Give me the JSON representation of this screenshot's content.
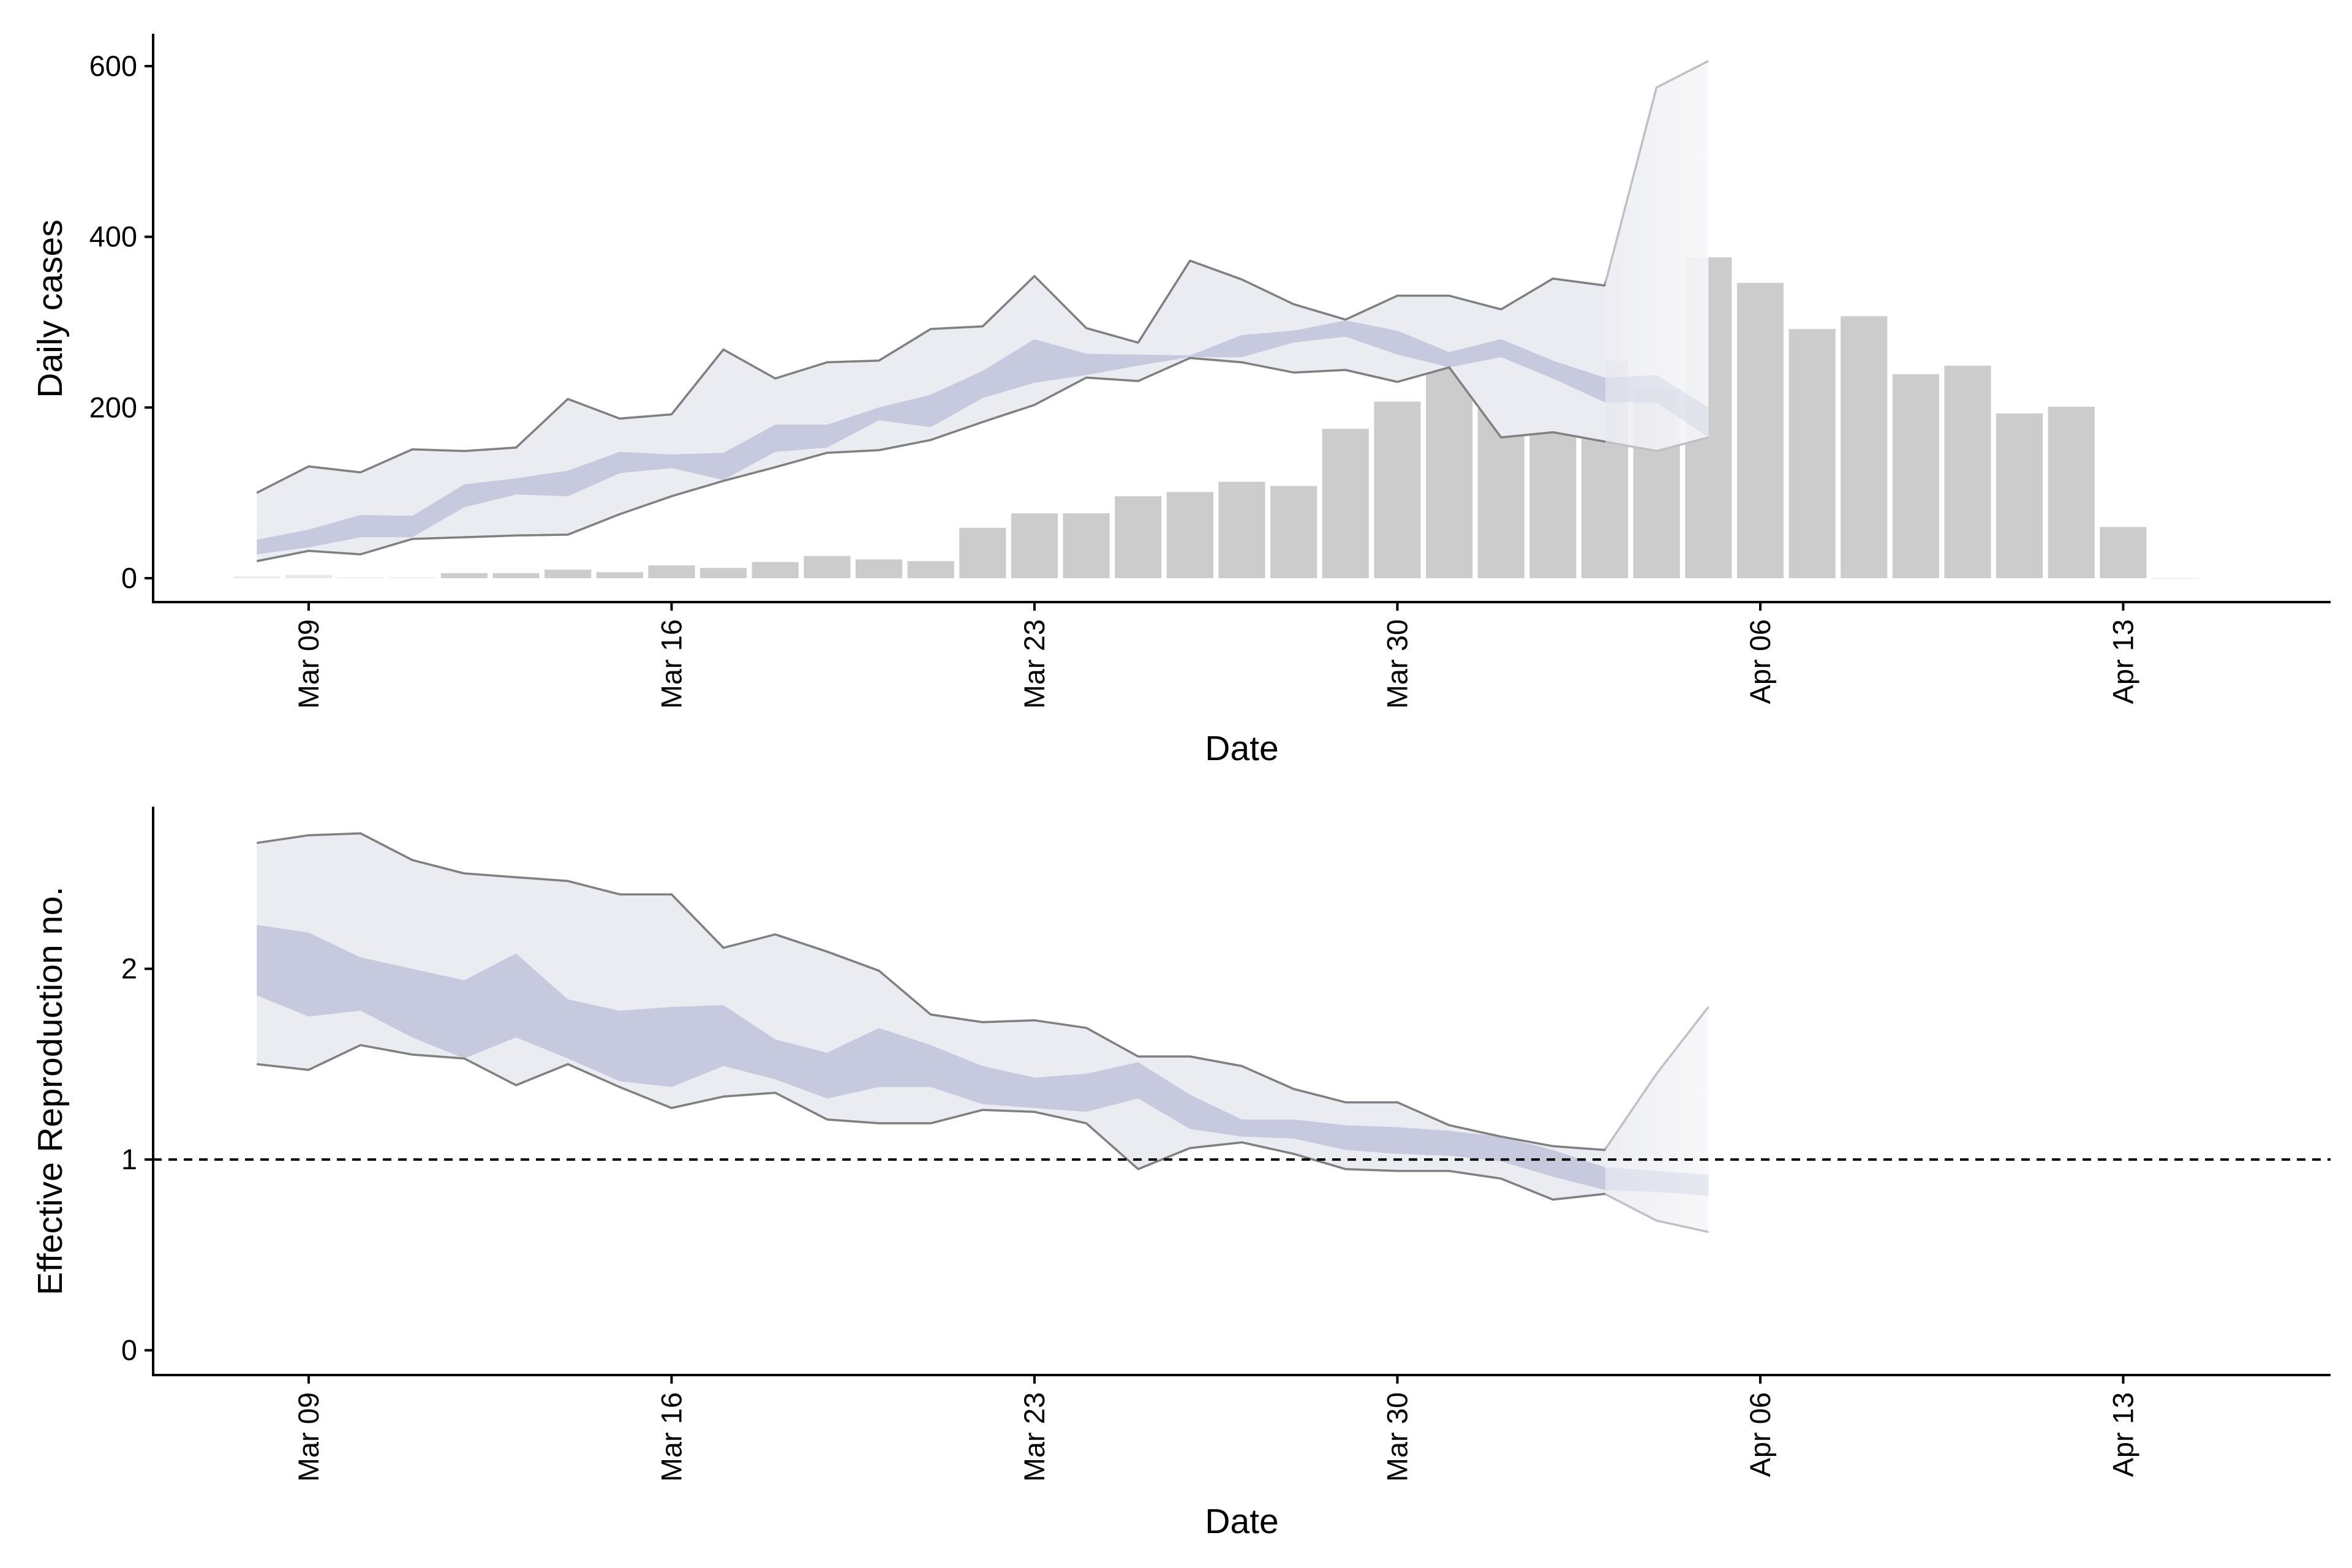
{
  "chart_data": [
    {
      "type": "bar",
      "xlabel": "Date",
      "ylabel": "Daily cases",
      "ylim": [
        -28,
        638
      ],
      "yticks": [
        0,
        200,
        400,
        600
      ],
      "xticks": [
        "Mar 09",
        "Mar 16",
        "Mar 23",
        "Mar 30",
        "Apr 06",
        "Apr 13"
      ],
      "x_start": "Mar 06",
      "x_end": "Apr 17",
      "date_unit": "day",
      "grid": false,
      "legend": "none",
      "bars": {
        "x": [
          "Mar 08",
          "Mar 09",
          "Mar 10",
          "Mar 11",
          "Mar 12",
          "Mar 13",
          "Mar 14",
          "Mar 15",
          "Mar 16",
          "Mar 17",
          "Mar 18",
          "Mar 19",
          "Mar 20",
          "Mar 21",
          "Mar 22",
          "Mar 23",
          "Mar 24",
          "Mar 25",
          "Mar 26",
          "Mar 27",
          "Mar 28",
          "Mar 29",
          "Mar 30",
          "Mar 31",
          "Apr 01",
          "Apr 02",
          "Apr 03",
          "Apr 04",
          "Apr 05",
          "Apr 06",
          "Apr 07",
          "Apr 08",
          "Apr 09",
          "Apr 10",
          "Apr 11",
          "Apr 12",
          "Apr 13",
          "Apr 14"
        ],
        "values": [
          2,
          4,
          1,
          1,
          6,
          6,
          10,
          7,
          15,
          12,
          19,
          26,
          22,
          20,
          59,
          76,
          76,
          96,
          101,
          113,
          108,
          175,
          207,
          306,
          220,
          259,
          255,
          222,
          376,
          346,
          292,
          307,
          239,
          249,
          193,
          201,
          60,
          0
        ],
        "faded_count": 4,
        "color": "#cccccc"
      },
      "estimate_dates": [
        "Mar 08",
        "Mar 09",
        "Mar 10",
        "Mar 11",
        "Mar 12",
        "Mar 13",
        "Mar 14",
        "Mar 15",
        "Mar 16",
        "Mar 17",
        "Mar 18",
        "Mar 19",
        "Mar 20",
        "Mar 21",
        "Mar 22",
        "Mar 23",
        "Mar 24",
        "Mar 25",
        "Mar 26",
        "Mar 27",
        "Mar 28",
        "Mar 29",
        "Mar 30",
        "Mar 31",
        "Apr 01",
        "Apr 02",
        "Apr 03",
        "Apr 04",
        "Apr 05"
      ],
      "band_outer_upper": [
        100,
        131,
        124,
        151,
        149,
        153,
        210,
        187,
        192,
        268,
        234,
        253,
        255,
        292,
        295,
        354,
        293,
        276,
        372,
        350,
        321,
        303,
        331,
        331,
        315,
        351,
        343,
        575,
        606
      ],
      "band_outer_lower": [
        20,
        32,
        28,
        46,
        48,
        50,
        51,
        75,
        96,
        114,
        130,
        147,
        150,
        162,
        183,
        203,
        235,
        231,
        258,
        253,
        241,
        244,
        230,
        247,
        165,
        171,
        160,
        149,
        165
      ],
      "band_inner_upper": [
        45,
        57,
        74,
        73,
        110,
        117,
        126,
        148,
        145,
        147,
        180,
        180,
        200,
        215,
        243,
        280,
        263,
        262,
        261,
        285,
        290,
        302,
        290,
        265,
        280,
        255,
        235,
        238,
        200
      ],
      "band_inner_lower": [
        28,
        36,
        48,
        48,
        83,
        98,
        96,
        123,
        129,
        115,
        148,
        153,
        185,
        177,
        211,
        229,
        238,
        249,
        259,
        259,
        276,
        283,
        262,
        247,
        259,
        234,
        206,
        206,
        165
      ],
      "fade_from": "Apr 03",
      "colors": {
        "outer": "#ebecf2",
        "inner": "#c7cadf",
        "line": "#808080",
        "faded_line": "#c0c0c4"
      }
    },
    {
      "type": "area",
      "xlabel": "Date",
      "ylabel": "Effective Reproduction no.",
      "ylim": [
        -0.13,
        2.85
      ],
      "yticks": [
        0,
        1,
        2
      ],
      "xticks": [
        "Mar 09",
        "Mar 16",
        "Mar 23",
        "Mar 30",
        "Apr 06",
        "Apr 13"
      ],
      "x_start": "Mar 06",
      "x_end": "Apr 17",
      "date_unit": "day",
      "grid": false,
      "legend": "none",
      "reference_line": 1,
      "estimate_dates": [
        "Mar 08",
        "Mar 09",
        "Mar 10",
        "Mar 11",
        "Mar 12",
        "Mar 13",
        "Mar 14",
        "Mar 15",
        "Mar 16",
        "Mar 17",
        "Mar 18",
        "Mar 19",
        "Mar 20",
        "Mar 21",
        "Mar 22",
        "Mar 23",
        "Mar 24",
        "Mar 25",
        "Mar 26",
        "Mar 27",
        "Mar 28",
        "Mar 29",
        "Mar 30",
        "Mar 31",
        "Apr 01",
        "Apr 02",
        "Apr 03",
        "Apr 04",
        "Apr 05"
      ],
      "band_outer_upper": [
        2.66,
        2.7,
        2.71,
        2.57,
        2.5,
        2.48,
        2.46,
        2.39,
        2.39,
        2.11,
        2.18,
        2.09,
        1.99,
        1.76,
        1.72,
        1.73,
        1.69,
        1.54,
        1.54,
        1.49,
        1.37,
        1.3,
        1.3,
        1.18,
        1.12,
        1.07,
        1.05,
        1.45,
        1.8
      ],
      "band_outer_lower": [
        1.5,
        1.47,
        1.6,
        1.55,
        1.53,
        1.39,
        1.5,
        1.38,
        1.27,
        1.33,
        1.35,
        1.21,
        1.19,
        1.19,
        1.26,
        1.25,
        1.19,
        0.95,
        1.06,
        1.09,
        1.03,
        0.95,
        0.94,
        0.94,
        0.9,
        0.79,
        0.82,
        0.68,
        0.62
      ],
      "band_inner_upper": [
        2.23,
        2.19,
        2.06,
        2.0,
        1.94,
        2.08,
        1.84,
        1.78,
        1.8,
        1.81,
        1.63,
        1.56,
        1.69,
        1.6,
        1.49,
        1.43,
        1.45,
        1.51,
        1.34,
        1.21,
        1.21,
        1.18,
        1.17,
        1.15,
        1.12,
        1.05,
        0.96,
        0.94,
        0.92
      ],
      "band_inner_lower": [
        1.86,
        1.75,
        1.78,
        1.64,
        1.53,
        1.64,
        1.53,
        1.41,
        1.38,
        1.49,
        1.42,
        1.32,
        1.38,
        1.38,
        1.29,
        1.27,
        1.25,
        1.32,
        1.16,
        1.12,
        1.11,
        1.05,
        1.03,
        1.02,
        0.99,
        0.91,
        0.84,
        0.83,
        0.81
      ],
      "fade_from": "Apr 03",
      "colors": {
        "outer": "#ebecf2",
        "inner": "#c7cadf",
        "line": "#808080",
        "faded_line": "#c0c0c4",
        "reference": "#000000"
      }
    }
  ]
}
